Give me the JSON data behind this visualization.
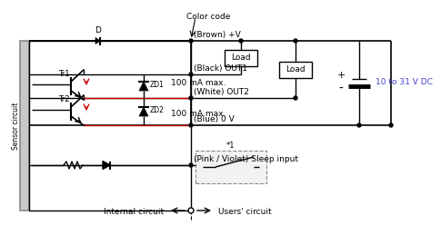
{
  "bg_color": "#ffffff",
  "line_color": "#000000",
  "red_color": "#cc0000",
  "blue_color": "#4444cc",
  "labels": {
    "sensor_circuit": "Sensor circuit",
    "color_code": "Color code",
    "brown_v": "(Brown) +V",
    "black_out1": "(Black) OUT1",
    "white_out2": "(White) OUT2",
    "blue_0v": "(Blue) 0 V",
    "pink_sleep": "(Pink / Violet) Sleep input",
    "internal": "Internal circuit",
    "users": "Users' circuit",
    "d_label": "D",
    "tr1": "Tr1",
    "tr2": "Tr2",
    "zd1": "ZD1",
    "zd2": "ZD2",
    "load1": "Load",
    "load2": "Load",
    "100ma_1": "100 mA max.",
    "100ma_2": "100 mA max.",
    "vdc": "10 to 31 V DC",
    "star1": "*1",
    "plus": "+",
    "minus": "-"
  }
}
